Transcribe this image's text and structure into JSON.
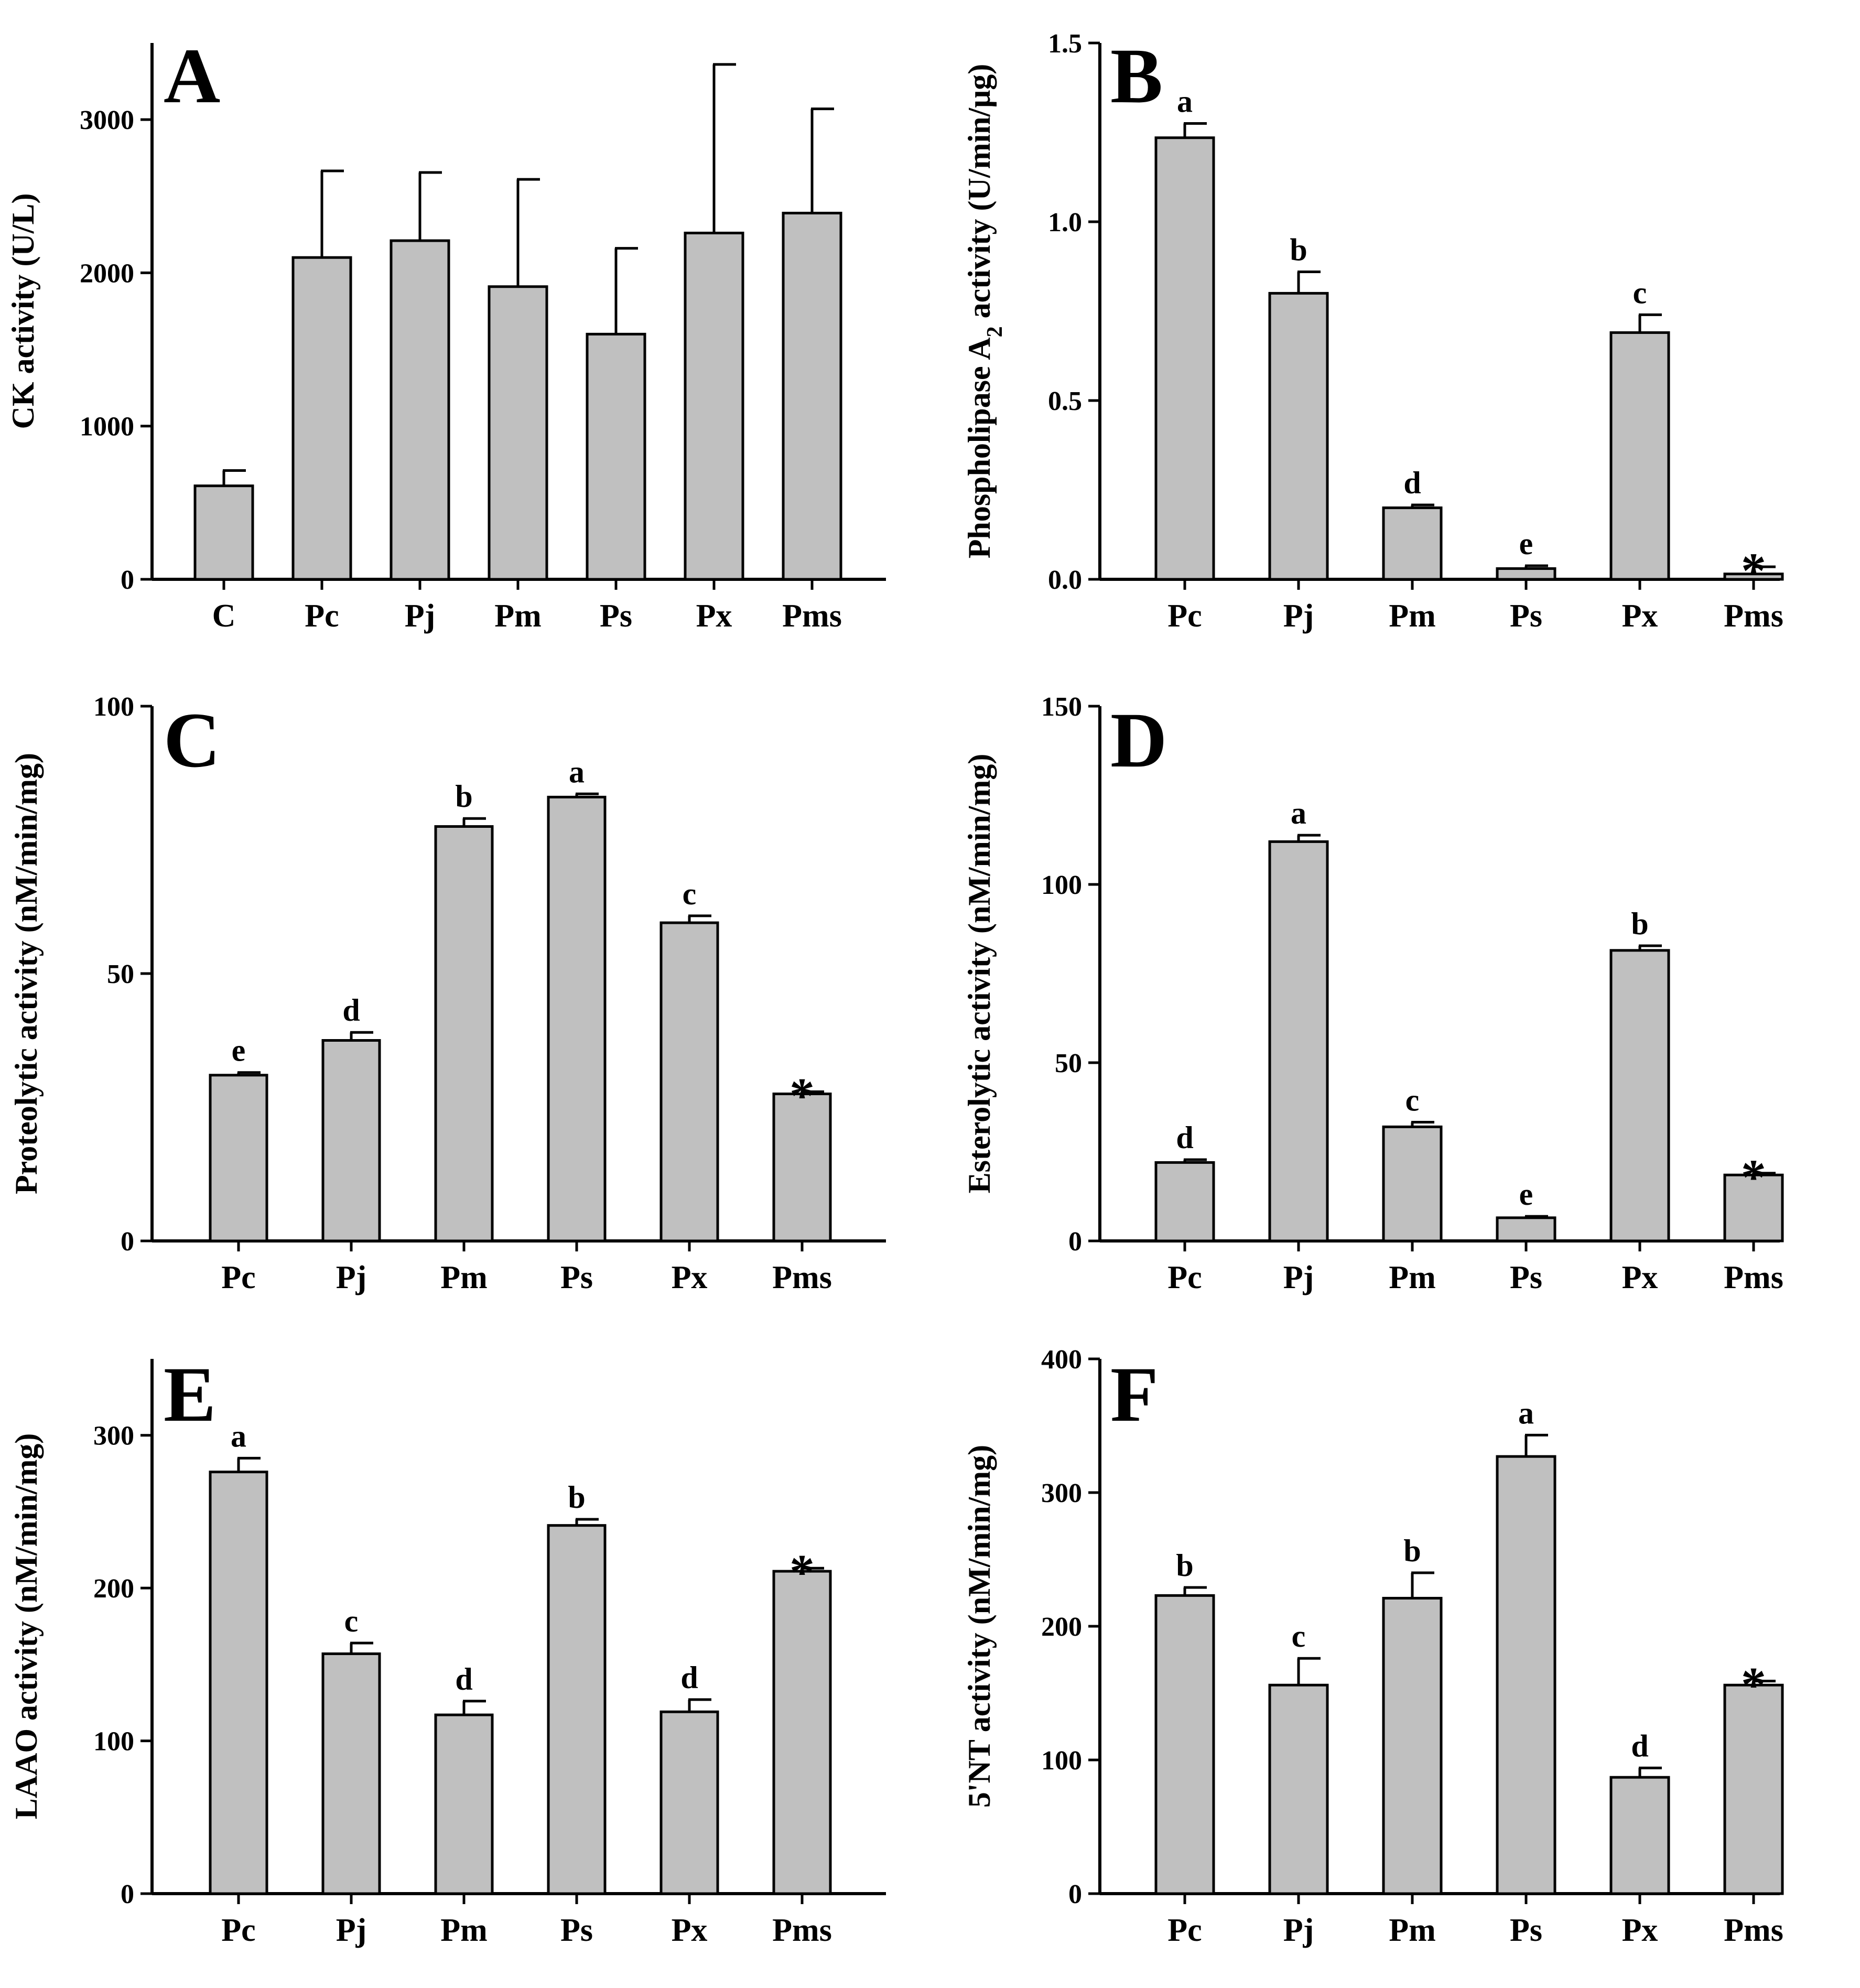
{
  "chart_data": [
    {
      "type": "bar",
      "panel": "A",
      "title": "",
      "xlabel": "",
      "ylabel": "CK activity (U/L)",
      "categories": [
        "C",
        "Pc",
        "Pj",
        "Pm",
        "Ps",
        "Px",
        "Pms"
      ],
      "values": [
        610,
        2100,
        2210,
        1910,
        1600,
        2260,
        2390
      ],
      "errors": [
        100,
        565,
        445,
        700,
        560,
        1100,
        680
      ],
      "labels": [
        "",
        "",
        "",
        "",
        "",
        "",
        ""
      ],
      "ylim": [
        0,
        3500
      ],
      "yticks": [
        0,
        1000,
        2000,
        3000
      ]
    },
    {
      "type": "bar",
      "panel": "B",
      "title": "",
      "xlabel": "",
      "ylabel": "Phospholipase A2 activity (U/min/μg)",
      "ylabel_parts": {
        "before": "Phospholipase A",
        "sub": "2",
        "after": " activity (U/min/μg)"
      },
      "categories": [
        "Pc",
        "Pj",
        "Pm",
        "Ps",
        "Px",
        "Pms"
      ],
      "values": [
        1.235,
        0.8,
        0.2,
        0.03,
        0.69,
        0.015
      ],
      "errors": [
        0.04,
        0.06,
        0.008,
        0.008,
        0.05,
        0.02
      ],
      "labels": [
        "a",
        "b",
        "d",
        "e",
        "c",
        "*"
      ],
      "ylim": [
        0,
        1.5
      ],
      "yticks": [
        "0.0",
        "0.5",
        "1.0",
        "1.5"
      ]
    },
    {
      "type": "bar",
      "panel": "C",
      "title": "",
      "xlabel": "",
      "ylabel": "Proteolytic activity (nM/min/mg)",
      "categories": [
        "Pc",
        "Pj",
        "Pm",
        "Ps",
        "Px",
        "Pms"
      ],
      "values": [
        31,
        37.5,
        77.5,
        83,
        59.5,
        27.5
      ],
      "errors": [
        0.5,
        1.5,
        1.5,
        0.6,
        1.3,
        0.4
      ],
      "labels": [
        "e",
        "d",
        "b",
        "a",
        "c",
        "*"
      ],
      "ylim": [
        0,
        100
      ],
      "yticks": [
        0,
        50,
        100
      ]
    },
    {
      "type": "bar",
      "panel": "D",
      "title": "",
      "xlabel": "",
      "ylabel": "Esterolytic activity (nM/min/mg)",
      "categories": [
        "Pc",
        "Pj",
        "Pm",
        "Ps",
        "Px",
        "Pms"
      ],
      "values": [
        22,
        112,
        32,
        6.5,
        81.5,
        18.5
      ],
      "errors": [
        0.8,
        1.8,
        1.3,
        0.4,
        1.3,
        0.5
      ],
      "labels": [
        "d",
        "a",
        "c",
        "e",
        "b",
        "*"
      ],
      "ylim": [
        0,
        150
      ],
      "yticks": [
        0,
        50,
        100,
        150
      ]
    },
    {
      "type": "bar",
      "panel": "E",
      "title": "",
      "xlabel": "",
      "ylabel": "LAAO activity (nM/min/mg)",
      "categories": [
        "Pc",
        "Pj",
        "Pm",
        "Ps",
        "Px",
        "Pms"
      ],
      "values": [
        276,
        157,
        117,
        241,
        119,
        211
      ],
      "errors": [
        9,
        7,
        9,
        4,
        8,
        2
      ],
      "labels": [
        "a",
        "c",
        "d",
        "b",
        "d",
        "*"
      ],
      "ylim": [
        0,
        350
      ],
      "yticks": [
        0,
        100,
        200,
        300
      ]
    },
    {
      "type": "bar",
      "panel": "F",
      "title": "",
      "xlabel": "",
      "ylabel": "5'NT activity (nM/min/mg)",
      "categories": [
        "Pc",
        "Pj",
        "Pm",
        "Ps",
        "Px",
        "Pms"
      ],
      "values": [
        223,
        156,
        221,
        327,
        87,
        156
      ],
      "errors": [
        6,
        20,
        19,
        16,
        7,
        3
      ],
      "labels": [
        "b",
        "c",
        "b",
        "a",
        "d",
        "*"
      ],
      "ylim": [
        0,
        400
      ],
      "yticks": [
        0,
        100,
        200,
        300,
        400
      ]
    }
  ]
}
